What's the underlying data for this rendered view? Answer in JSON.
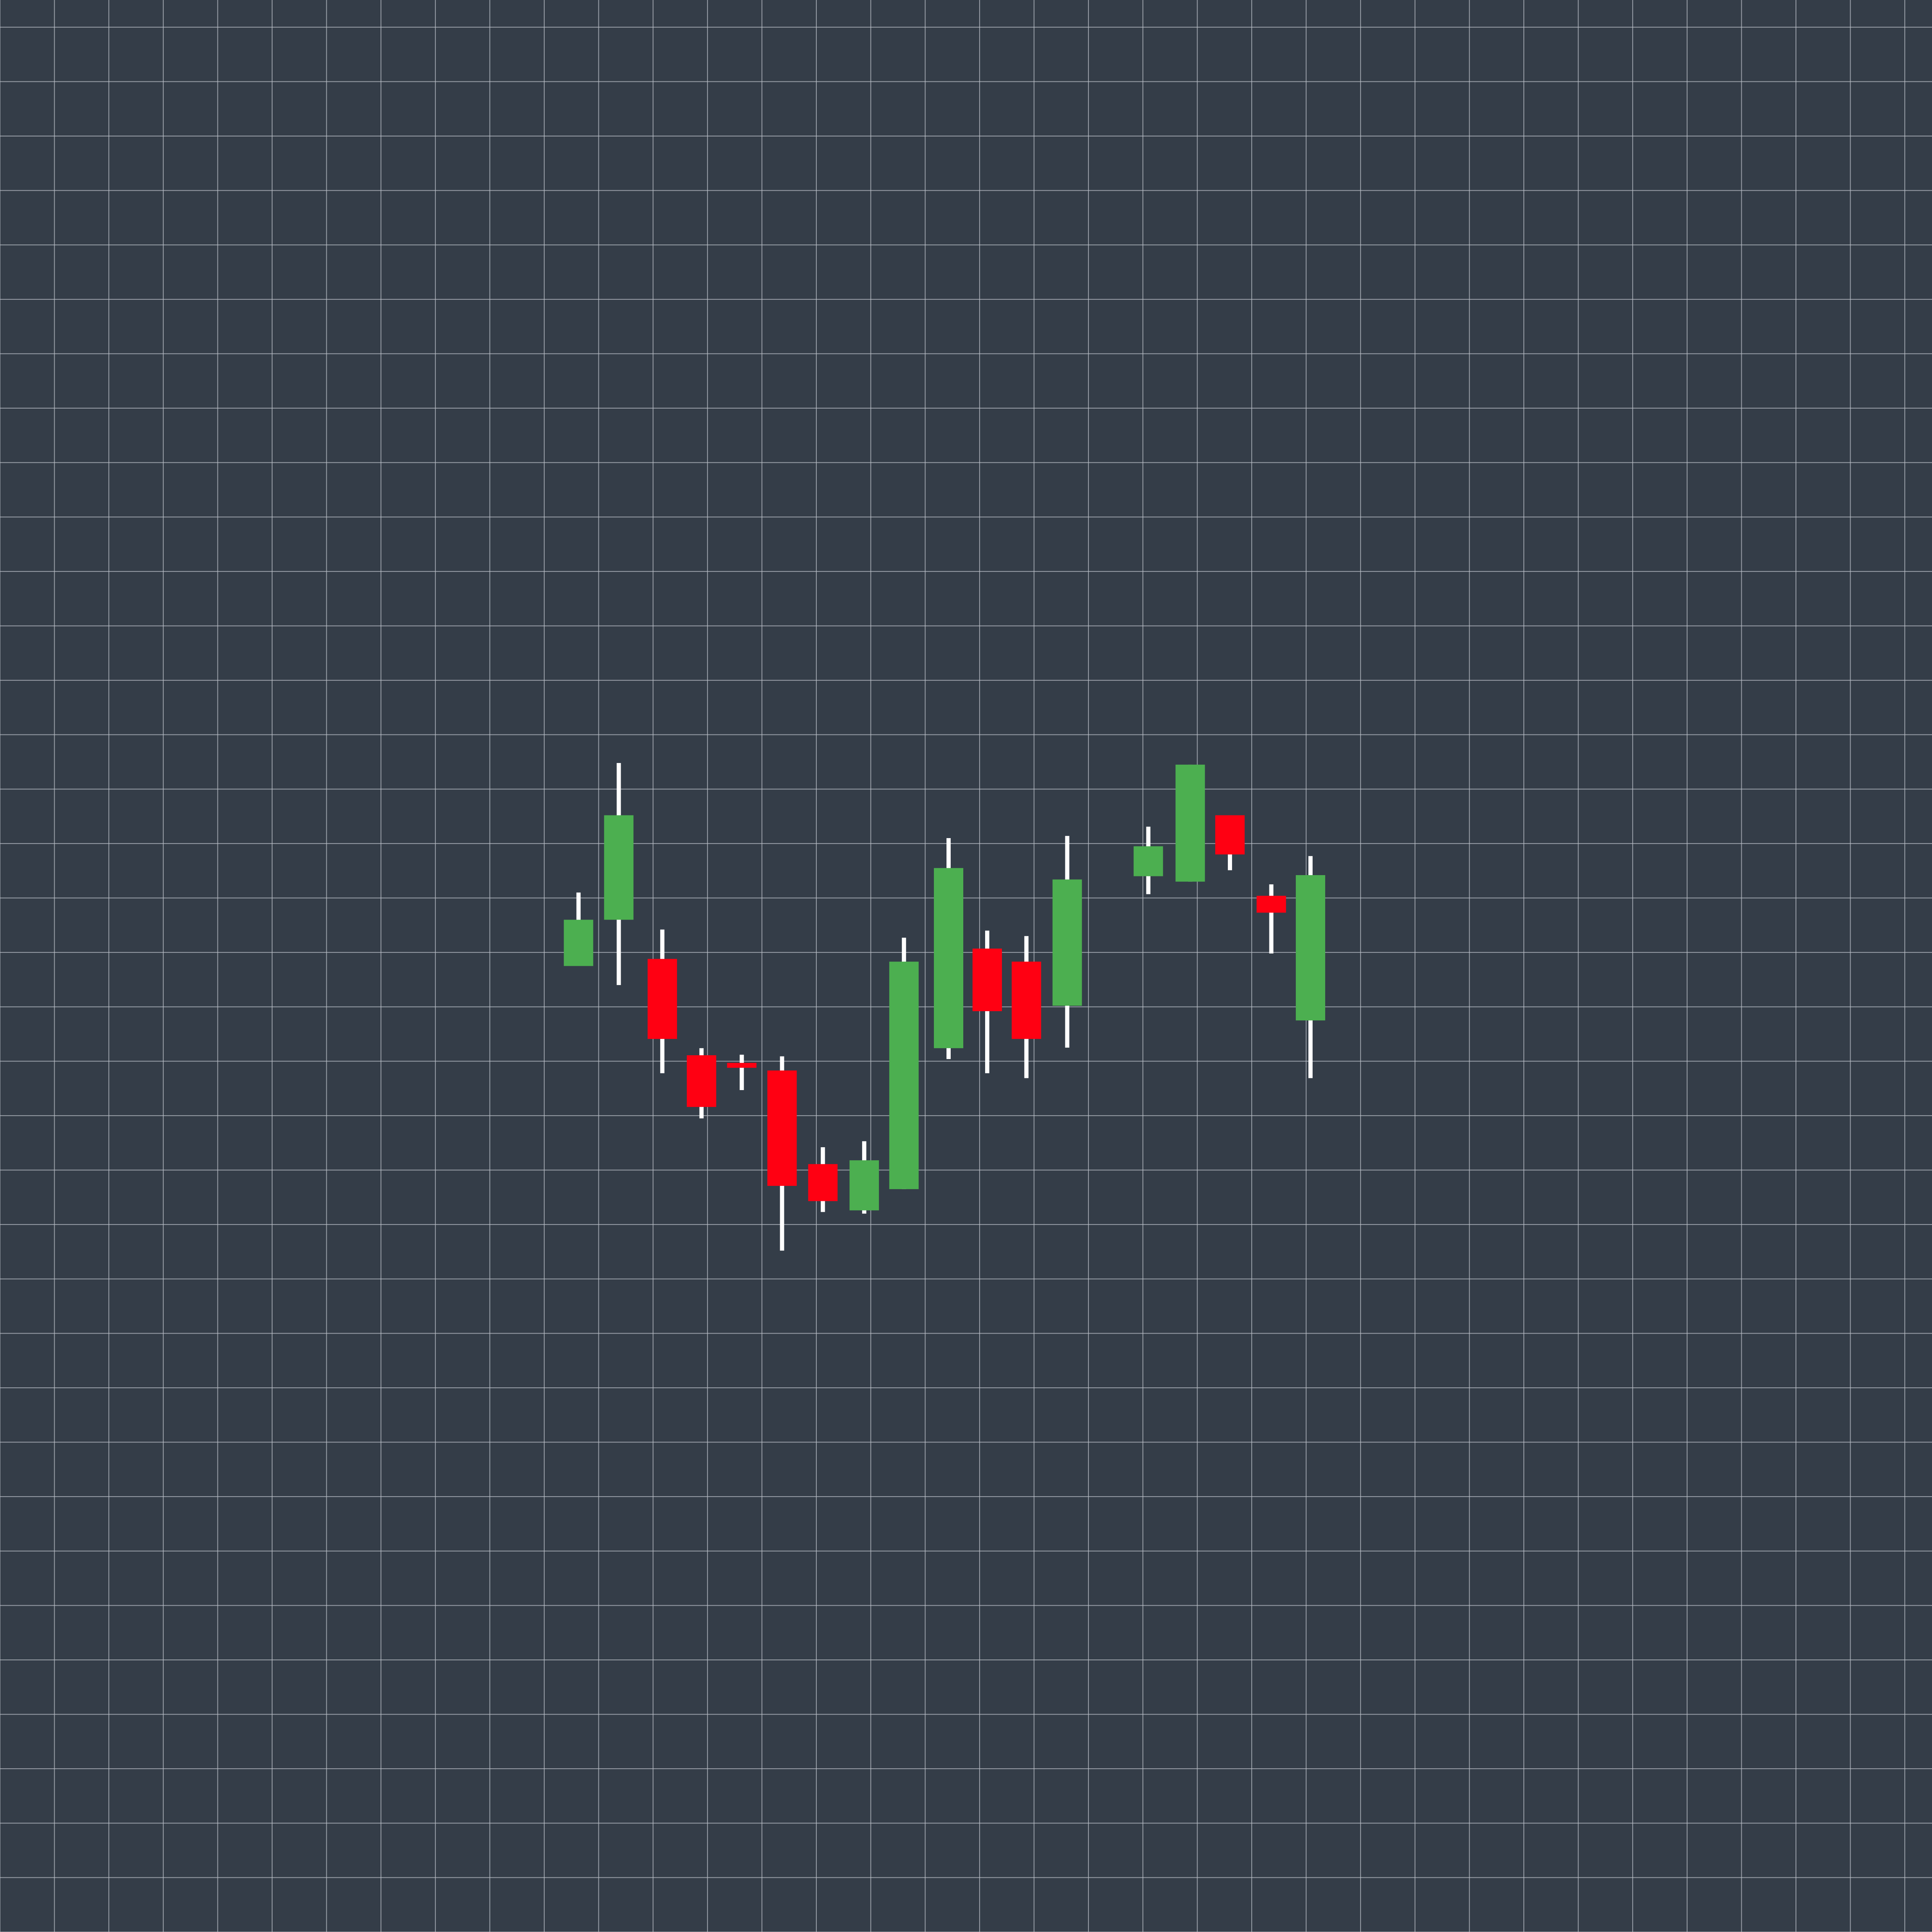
{
  "chart_data": {
    "type": "candlestick",
    "title": "",
    "xlabel": "",
    "ylabel": "",
    "grid": true,
    "colors": {
      "background": "#343d48",
      "grid": "#b8bec6",
      "up": "#4caf50",
      "down": "#ff0012",
      "wick": "#ffffff"
    },
    "xlim": [
      0,
      35.5
    ],
    "ylim": [
      0,
      35.5
    ],
    "candles": [
      {
        "x": 10.63,
        "open": 17.75,
        "close": 18.6,
        "high": 19.1,
        "low": 17.75
      },
      {
        "x": 11.37,
        "open": 18.6,
        "close": 20.52,
        "high": 21.48,
        "low": 17.4
      },
      {
        "x": 12.17,
        "open": 17.88,
        "close": 16.41,
        "high": 18.42,
        "low": 15.78
      },
      {
        "x": 12.89,
        "open": 16.11,
        "close": 15.16,
        "high": 16.24,
        "low": 14.95
      },
      {
        "x": 13.63,
        "open": 15.97,
        "close": 15.88,
        "high": 16.12,
        "low": 15.47
      },
      {
        "x": 14.37,
        "open": 15.83,
        "close": 13.71,
        "high": 16.09,
        "low": 12.52
      },
      {
        "x": 15.12,
        "open": 14.11,
        "close": 13.43,
        "high": 14.42,
        "low": 13.23
      },
      {
        "x": 15.88,
        "open": 13.26,
        "close": 14.18,
        "high": 14.53,
        "low": 13.2
      },
      {
        "x": 16.61,
        "open": 13.65,
        "close": 17.83,
        "high": 18.27,
        "low": 13.65
      },
      {
        "x": 17.43,
        "open": 16.24,
        "close": 19.55,
        "high": 20.1,
        "low": 16.04
      },
      {
        "x": 18.14,
        "open": 18.07,
        "close": 16.92,
        "high": 18.4,
        "low": 15.78
      },
      {
        "x": 18.86,
        "open": 17.83,
        "close": 16.41,
        "high": 18.3,
        "low": 15.69
      },
      {
        "x": 19.61,
        "open": 17.02,
        "close": 19.34,
        "high": 20.14,
        "low": 16.25
      },
      {
        "x": 21.1,
        "open": 19.4,
        "close": 19.95,
        "high": 20.31,
        "low": 19.07
      },
      {
        "x": 21.87,
        "open": 19.3,
        "close": 21.45,
        "high": 21.45,
        "low": 19.3
      },
      {
        "x": 22.6,
        "open": 20.52,
        "close": 19.8,
        "high": 20.52,
        "low": 19.51
      },
      {
        "x": 23.36,
        "open": 19.04,
        "close": 18.73,
        "high": 19.25,
        "low": 17.98
      },
      {
        "x": 24.08,
        "open": 16.75,
        "close": 19.42,
        "high": 19.77,
        "low": 15.69
      }
    ]
  }
}
